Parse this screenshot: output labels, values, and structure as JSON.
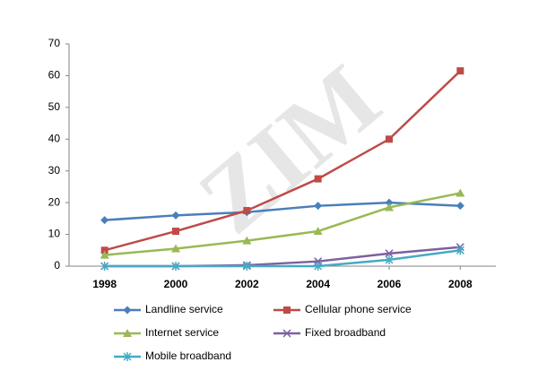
{
  "chart_data": {
    "type": "line",
    "watermark": "ZIM",
    "x": [
      1998,
      2000,
      2002,
      2004,
      2006,
      2008
    ],
    "xlim": [
      1997,
      2009
    ],
    "xticks": [
      1998,
      2000,
      2002,
      2004,
      2006,
      2008
    ],
    "ylim": [
      0,
      70
    ],
    "yticks": [
      0,
      10,
      20,
      30,
      40,
      50,
      60,
      70
    ],
    "grid": false,
    "series": [
      {
        "name": "Landline service",
        "color": "#4a7ebb",
        "marker": "diamond",
        "values": [
          14.5,
          16,
          17,
          19,
          20,
          19
        ]
      },
      {
        "name": "Cellular phone service",
        "color": "#be4b48",
        "marker": "square",
        "values": [
          5,
          11,
          17.5,
          27.5,
          40,
          61.5
        ]
      },
      {
        "name": "Internet service",
        "color": "#98b954",
        "marker": "triangle",
        "values": [
          3.5,
          5.5,
          8,
          11,
          18.5,
          23
        ]
      },
      {
        "name": "Fixed broadband",
        "color": "#7d60a0",
        "marker": "x",
        "values": [
          0,
          0,
          0.3,
          1.5,
          4,
          6
        ]
      },
      {
        "name": "Mobile broadband",
        "color": "#46aac5",
        "marker": "star",
        "values": [
          0,
          0,
          0,
          0,
          2,
          5
        ]
      }
    ]
  }
}
